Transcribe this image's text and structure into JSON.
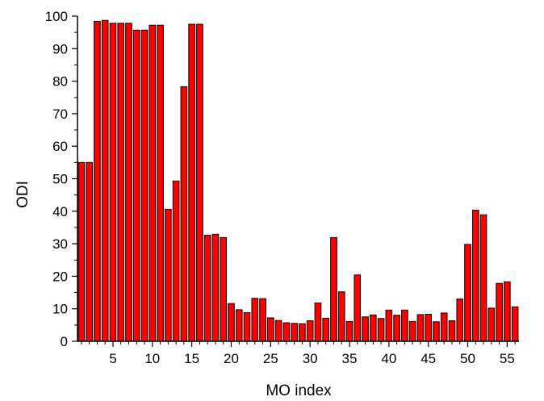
{
  "chart_data": {
    "type": "bar",
    "xlabel": "MO index",
    "ylabel": "ODI",
    "xlim": [
      0.5,
      56.5
    ],
    "ylim": [
      0,
      100
    ],
    "x_ticks": [
      5,
      10,
      15,
      20,
      25,
      30,
      35,
      40,
      45,
      50,
      55
    ],
    "y_ticks": [
      0,
      10,
      20,
      30,
      40,
      50,
      60,
      70,
      80,
      90,
      100
    ],
    "grid": false,
    "bar_color": "#ff0000",
    "bar_edge_color": "#000000",
    "x": [
      1,
      2,
      3,
      4,
      5,
      6,
      7,
      8,
      9,
      10,
      11,
      12,
      13,
      14,
      15,
      16,
      17,
      18,
      19,
      20,
      21,
      22,
      23,
      24,
      25,
      26,
      27,
      28,
      29,
      30,
      31,
      32,
      33,
      34,
      35,
      36,
      37,
      38,
      39,
      40,
      41,
      42,
      43,
      44,
      45,
      46,
      47,
      48,
      49,
      50,
      51,
      52,
      53,
      54,
      55,
      56
    ],
    "values": [
      55.0,
      55.0,
      98.4,
      98.7,
      97.8,
      97.8,
      97.8,
      95.7,
      95.7,
      97.2,
      97.2,
      40.6,
      49.3,
      78.3,
      97.5,
      97.5,
      32.6,
      32.9,
      31.9,
      11.6,
      9.7,
      8.8,
      13.2,
      13.1,
      7.2,
      6.4,
      5.7,
      5.5,
      5.4,
      6.3,
      11.8,
      7.1,
      31.9,
      15.2,
      6.1,
      20.4,
      7.5,
      8.1,
      7.0,
      9.6,
      8.0,
      9.6,
      6.1,
      8.2,
      8.3,
      6.0,
      8.7,
      6.3,
      13.0,
      29.8,
      40.3,
      38.9,
      10.2,
      17.8,
      18.3,
      10.6
    ]
  }
}
